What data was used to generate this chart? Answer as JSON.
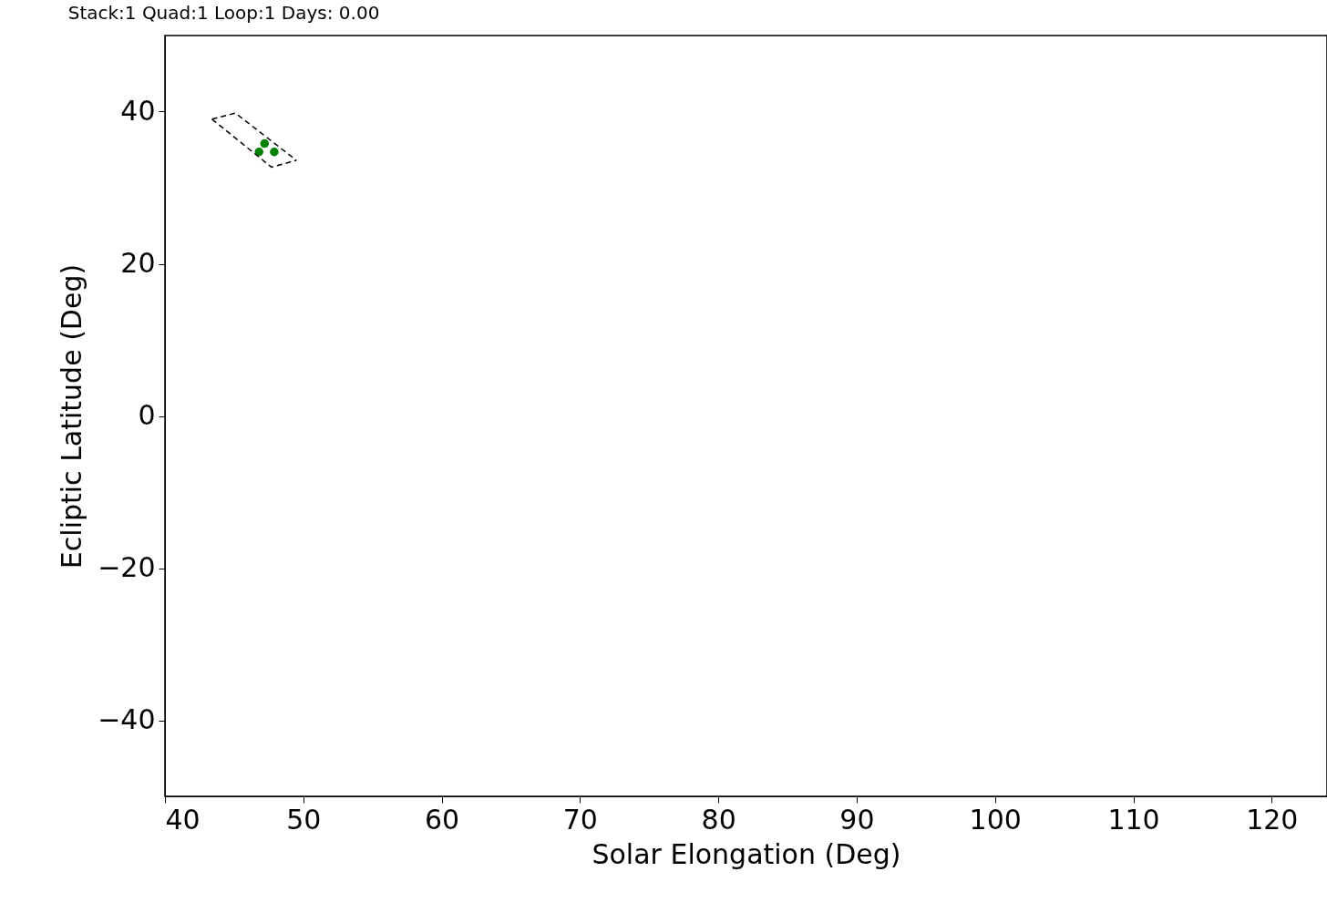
{
  "chart_data": {
    "type": "scatter",
    "title": "Stack:1  Quad:1  Loop:1  Days: 0.00",
    "xlabel": "Solar Elongation (Deg)",
    "ylabel": "Ecliptic Latitude (Deg)",
    "xlim": [
      40,
      124
    ],
    "ylim": [
      -50,
      50
    ],
    "xticks": [
      40,
      50,
      60,
      70,
      80,
      90,
      100,
      110,
      120
    ],
    "yticks": [
      {
        "value": -40,
        "label": "−40"
      },
      {
        "value": -20,
        "label": "−20"
      },
      0,
      20,
      40
    ],
    "grid": false,
    "marker": "circle",
    "series": [
      {
        "color": "#008000",
        "x": [
          46.8,
          47.2,
          47.9
        ],
        "values": [
          34.7,
          35.8,
          34.7
        ]
      },
      {
        "type": "line",
        "color": "#000000",
        "line_style": "dashed",
        "marker": "none",
        "x": [
          43.4,
          45.1,
          49.5
        ],
        "values": [
          39.0,
          39.8,
          33.6
        ]
      },
      {
        "type": "line",
        "color": "#000000",
        "line_style": "dashed",
        "marker": "none",
        "x": [
          43.4,
          47.7,
          49.5
        ],
        "values": [
          39.0,
          32.7,
          33.6
        ]
      }
    ]
  }
}
